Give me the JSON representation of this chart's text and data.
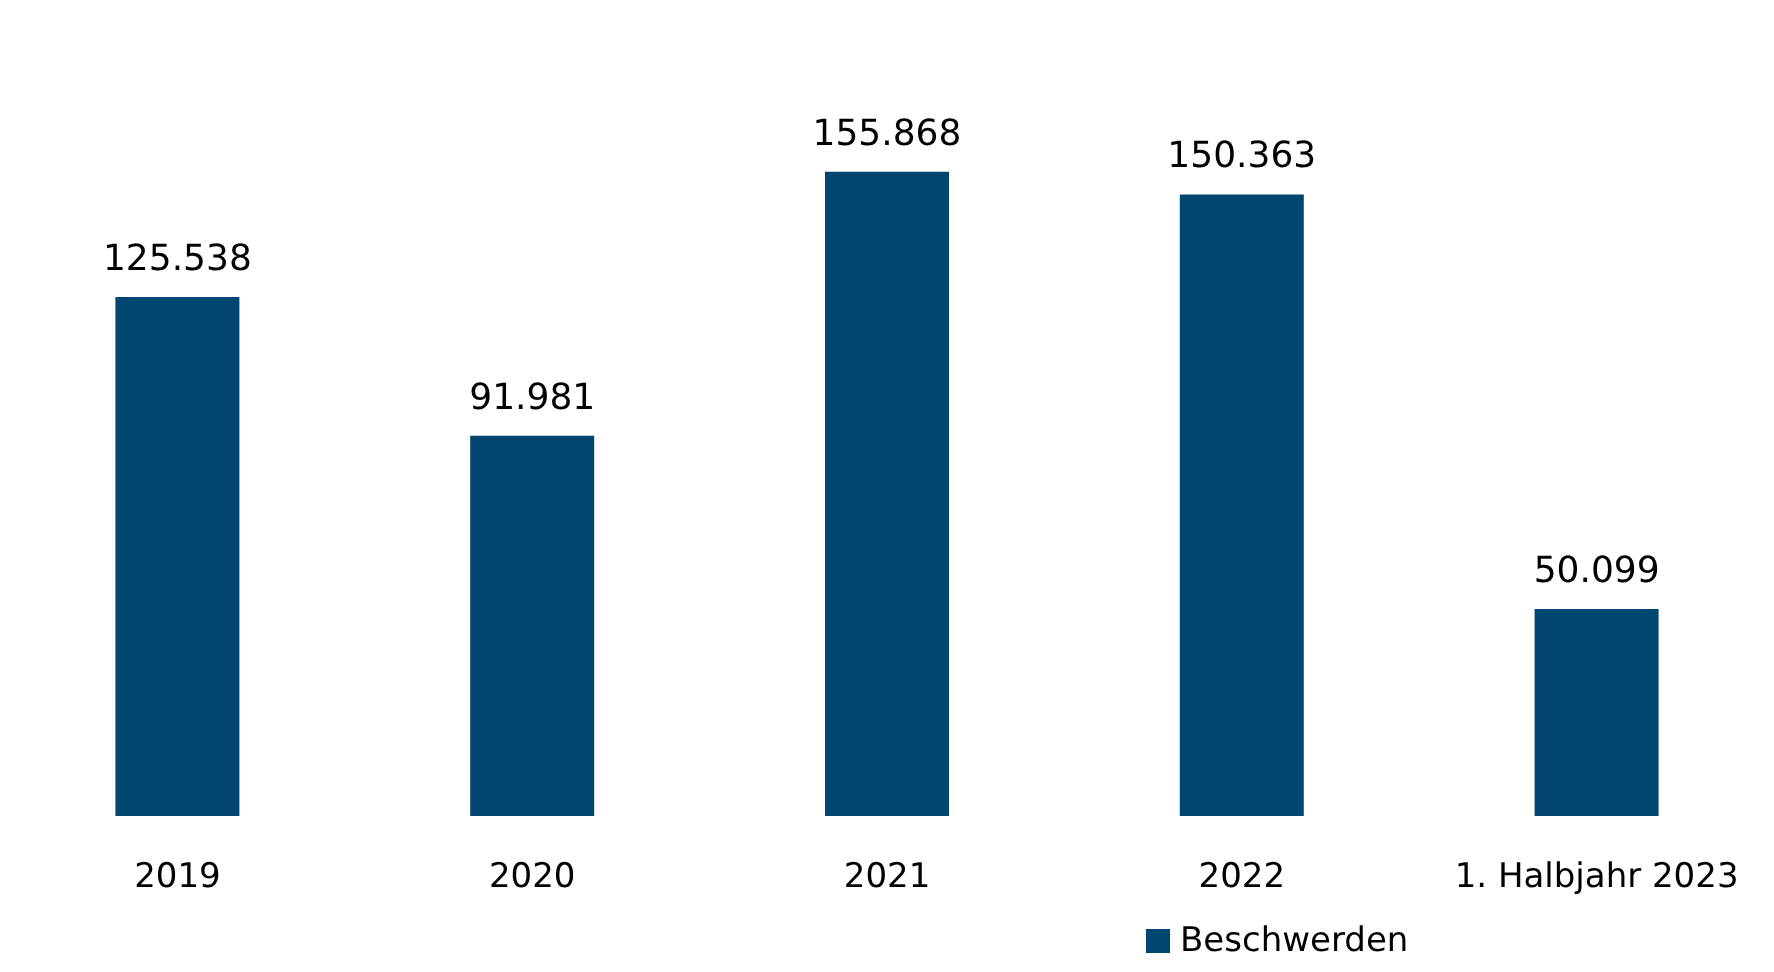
{
  "chart_data": {
    "type": "bar",
    "categories": [
      "2019",
      "2020",
      "2021",
      "2022",
      "1. Halbjahr 2023"
    ],
    "series": [
      {
        "name": "Beschwerden",
        "color": "#004670",
        "values": [
          125538,
          91981,
          155868,
          150363,
          50099
        ],
        "value_labels": [
          "125.538",
          "91.981",
          "155.868",
          "150.363",
          "50.099"
        ]
      }
    ],
    "legend": "bottom"
  }
}
